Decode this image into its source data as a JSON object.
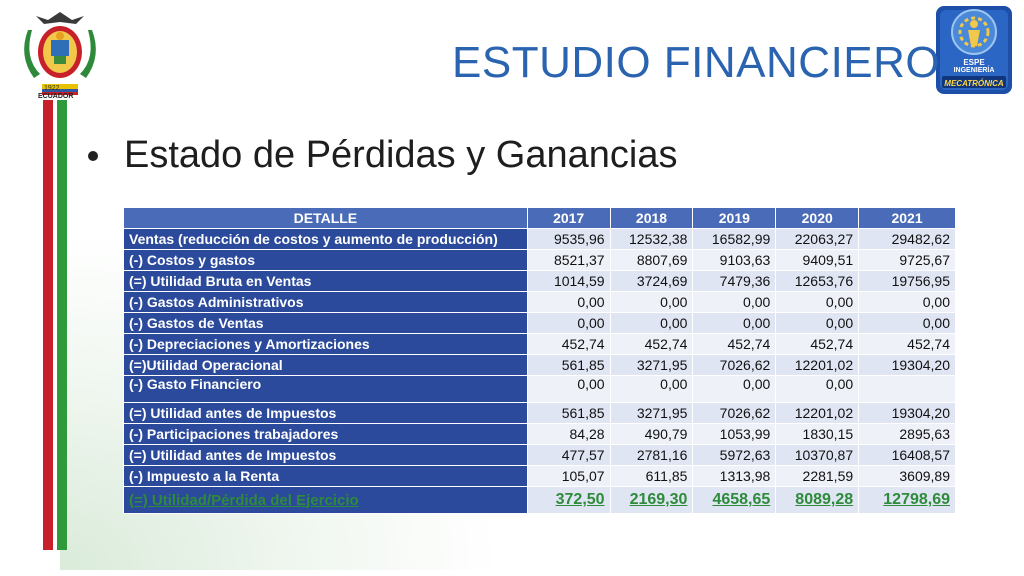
{
  "header": {
    "title": "ESTUDIO FINANCIERO",
    "left_logo": {
      "icon": "ecuador-coat-of-arms-icon",
      "caption_year": "1922",
      "caption": "ECUADOR"
    },
    "right_logo": {
      "icon": "espe-mecatronica-logo-icon",
      "line1": "ESPE",
      "line2": "INGENIERÍA",
      "line3": "MECATRÓNICA"
    }
  },
  "bullet": {
    "text": "Estado de Pérdidas y Ganancias"
  },
  "table": {
    "headers": [
      "DETALLE",
      "2017",
      "2018",
      "2019",
      "2020",
      "2021"
    ],
    "rows": [
      {
        "label": "Ventas (reducción de costos y aumento de producción)",
        "values": [
          "9535,96",
          "12532,38",
          "16582,99",
          "22063,27",
          "29482,62"
        ]
      },
      {
        "label": "(-) Costos y gastos",
        "values": [
          "8521,37",
          "8807,69",
          "9103,63",
          "9409,51",
          "9725,67"
        ]
      },
      {
        "label": "(=) Utilidad Bruta en Ventas",
        "values": [
          "1014,59",
          "3724,69",
          "7479,36",
          "12653,76",
          "19756,95"
        ]
      },
      {
        "label": "(-) Gastos Administrativos",
        "values": [
          "0,00",
          "0,00",
          "0,00",
          "0,00",
          "0,00"
        ]
      },
      {
        "label": "(-) Gastos de Ventas",
        "values": [
          "0,00",
          "0,00",
          "0,00",
          "0,00",
          "0,00"
        ]
      },
      {
        "label": "(-) Depreciaciones y Amortizaciones",
        "values": [
          "452,74",
          "452,74",
          "452,74",
          "452,74",
          "452,74"
        ]
      },
      {
        "label": "(=)Utilidad Operacional",
        "values": [
          "561,85",
          "3271,95",
          "7026,62",
          "12201,02",
          "19304,20"
        ]
      },
      {
        "label": "(-) Gasto Financiero",
        "values": [
          "0,00",
          "0,00",
          "0,00",
          "0,00",
          ""
        ]
      },
      {
        "label": "(=) Utilidad antes de Impuestos",
        "values": [
          "561,85",
          "3271,95",
          "7026,62",
          "12201,02",
          "19304,20"
        ]
      },
      {
        "label": "(-) Participaciones trabajadores",
        "values": [
          "84,28",
          "490,79",
          "1053,99",
          "1830,15",
          "2895,63"
        ]
      },
      {
        "label": "(=) Utilidad antes de Impuestos",
        "values": [
          "477,57",
          "2781,16",
          "5972,63",
          "10370,87",
          "16408,57"
        ]
      },
      {
        "label": "(-) Impuesto a la Renta",
        "values": [
          "105,07",
          "611,85",
          "1313,98",
          "2281,59",
          "3609,89"
        ]
      },
      {
        "label": "(=) Utilidad/Pérdida del Ejercicio",
        "values": [
          "372,50",
          "2169,30",
          "4658,65",
          "8089,28",
          "12798,69"
        ]
      }
    ]
  },
  "colors": {
    "title": "#2a63b0",
    "header_bg": "#4a6cb8",
    "label_bg": "#2b4a9b",
    "value_bg": "#dfe5f3",
    "final_row_text": "#2e8b3a",
    "stripe_red": "#c8202a",
    "stripe_green": "#2e9a3c"
  }
}
